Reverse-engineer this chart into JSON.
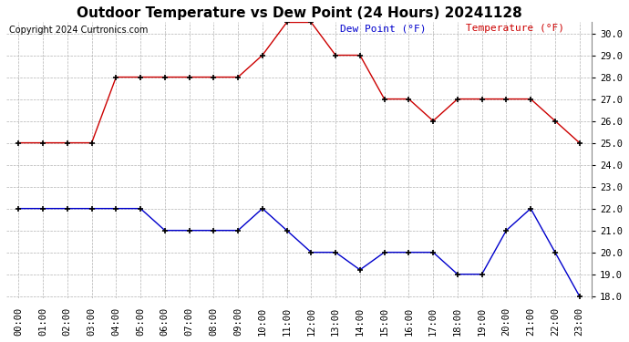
{
  "title": "Outdoor Temperature vs Dew Point (24 Hours) 20241128",
  "copyright": "Copyright 2024 Curtronics.com",
  "legend_dew": "Dew Point (°F)",
  "legend_temp": "Temperature (°F)",
  "hours": [
    "00:00",
    "01:00",
    "02:00",
    "03:00",
    "04:00",
    "05:00",
    "06:00",
    "07:00",
    "08:00",
    "09:00",
    "10:00",
    "11:00",
    "12:00",
    "13:00",
    "14:00",
    "15:00",
    "16:00",
    "17:00",
    "18:00",
    "19:00",
    "20:00",
    "21:00",
    "22:00",
    "23:00"
  ],
  "temperature": [
    25.0,
    25.0,
    25.0,
    25.0,
    28.0,
    28.0,
    28.0,
    28.0,
    28.0,
    28.0,
    29.0,
    30.5,
    30.5,
    29.0,
    29.0,
    27.0,
    27.0,
    26.0,
    27.0,
    27.0,
    27.0,
    27.0,
    26.0,
    25.0
  ],
  "dew_point": [
    22.0,
    22.0,
    22.0,
    22.0,
    22.0,
    22.0,
    21.0,
    21.0,
    21.0,
    21.0,
    22.0,
    21.0,
    20.0,
    20.0,
    19.2,
    20.0,
    20.0,
    20.0,
    19.0,
    19.0,
    21.0,
    22.0,
    20.0,
    18.0
  ],
  "temp_color": "#cc0000",
  "dew_color": "#0000cc",
  "ylim_min": 18.0,
  "ylim_max": 30.0,
  "ytick_interval": 1.0,
  "bg_color": "#ffffff",
  "grid_color": "#aaaaaa",
  "title_fontsize": 11,
  "tick_fontsize": 7.5,
  "copyright_fontsize": 7,
  "legend_fontsize": 8
}
